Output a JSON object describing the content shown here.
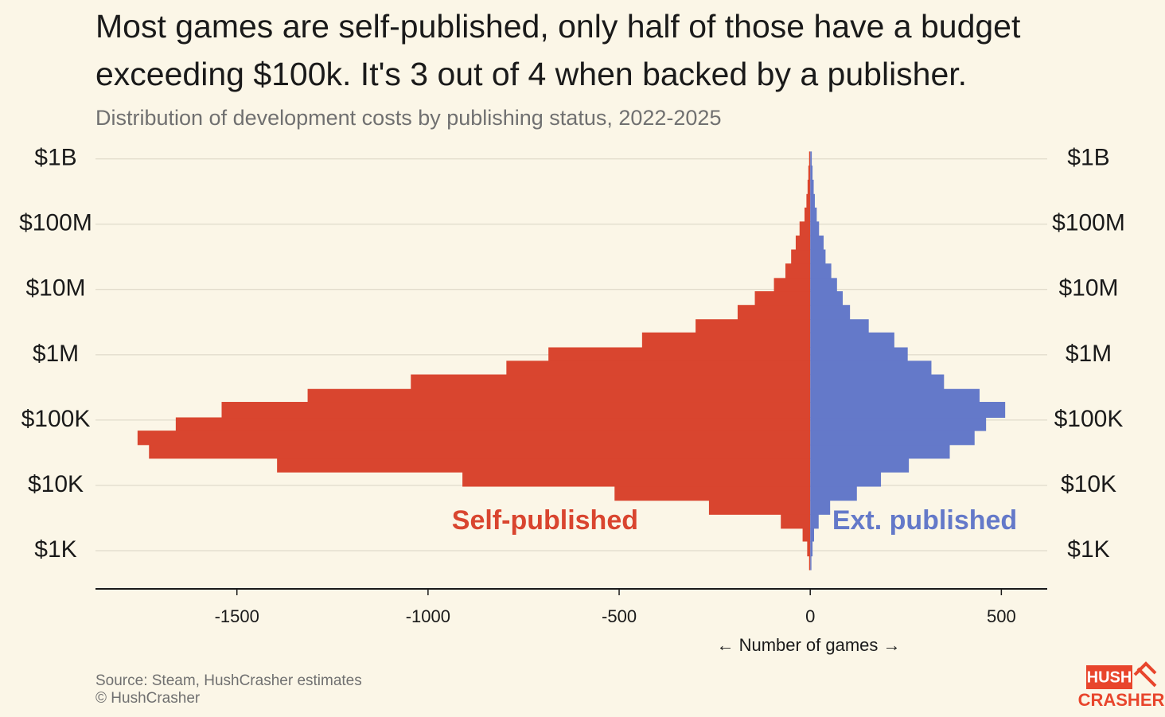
{
  "chart_data": {
    "type": "histogram",
    "orientation": "horizontal",
    "title": [
      "Most games are self-published, only half of those have a budget",
      "exceeding $100k. It's 3 out of 4 when backed by a publisher."
    ],
    "subtitle": "Distribution of development costs by publishing status, 2022-2025",
    "x_label": "← Number of games →",
    "source": [
      "Source: Steam, HushCrasher estimates",
      "© HushCrasher"
    ],
    "logo": [
      "HUSH",
      "CRASHER"
    ],
    "y_scale": "log",
    "grid": true,
    "bins": [
      510,
      830,
      1400,
      2200,
      3600,
      5900,
      9700,
      16000,
      26000,
      42000,
      69000,
      110000,
      190000,
      300000,
      500000,
      810000,
      1300000,
      2200000,
      3500000,
      5800000,
      9400000,
      15000000,
      25000000,
      41000000,
      67000000,
      110000000,
      180000000,
      290000000,
      480000000,
      790000000,
      1300000000
    ],
    "series": [
      {
        "name": "Self-published",
        "color": "#d9452f",
        "values": [
          -3,
          -8,
          -20,
          -77,
          -265,
          -512,
          -910,
          -1395,
          -1730,
          -1760,
          -1660,
          -1540,
          -1315,
          -1045,
          -795,
          -685,
          -440,
          -300,
          -190,
          -145,
          -95,
          -65,
          -50,
          -38,
          -28,
          -15,
          -10,
          -7,
          -5,
          -3
        ]
      },
      {
        "name": "Ext. published",
        "color": "#6479c9",
        "values": [
          3,
          6,
          10,
          22,
          52,
          122,
          185,
          258,
          365,
          430,
          460,
          510,
          443,
          350,
          317,
          255,
          220,
          153,
          104,
          85,
          70,
          55,
          40,
          35,
          23,
          17,
          12,
          9,
          6,
          4
        ]
      }
    ],
    "xlim": [
      -1870,
      620
    ],
    "xticks": [
      -1500,
      -1000,
      -500,
      0,
      500
    ],
    "ylim": [
      260,
      2000000000
    ],
    "yticks": [
      {
        "value": 1000,
        "label": "$1K"
      },
      {
        "value": 10000,
        "label": "$10K"
      },
      {
        "value": 100000,
        "label": "$100K"
      },
      {
        "value": 1000000,
        "label": "$1M"
      },
      {
        "value": 10000000,
        "label": "$10M"
      },
      {
        "value": 100000000,
        "label": "$100M"
      },
      {
        "value": 1000000000,
        "label": "$1B"
      }
    ]
  }
}
